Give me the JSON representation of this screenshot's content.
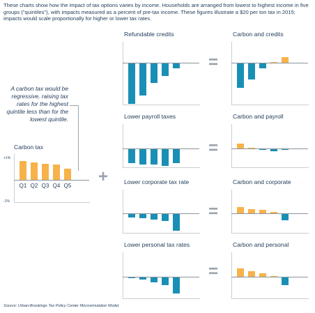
{
  "intro": "These charts show how the impact of tax options varies by income. Households are arranged from lowest to highest income in five groups (\"quintiles\"), with impacts measured as a percent of pre-tax income. These figures illustrate a $20 per ton tax in 2015; impacts would scale proportionally for higher or lower tax rates.",
  "note": "A carbon tax would be regressive, raising tax rates for the highest quintile less than for the lowest quintile.",
  "source": "Source: Urban-Brookings Tax Policy Center Microsimulation Model.",
  "operators": {
    "plus": "+",
    "equals": "="
  },
  "colors": {
    "carbon": "#f7b24a",
    "offset": "#1a8fb5"
  },
  "chart_data": [
    {
      "id": "carbon",
      "type": "bar",
      "title": "Carbon tax",
      "categories": [
        "Q1",
        "Q2",
        "Q3",
        "Q4",
        "Q5"
      ],
      "values": [
        0.85,
        0.78,
        0.73,
        0.68,
        0.5
      ],
      "yticks": [
        "+1%",
        "-1%"
      ],
      "ylim": [
        -1,
        1
      ],
      "color": "#f7b24a"
    },
    {
      "id": "refundable",
      "type": "bar",
      "title": "Refundable credits",
      "categories": [
        "Q1",
        "Q2",
        "Q3",
        "Q4",
        "Q5"
      ],
      "values": [
        -2.5,
        -2.0,
        -1.2,
        -0.8,
        -0.3
      ],
      "ylim": [
        -3,
        1
      ],
      "color": "#1a8fb5"
    },
    {
      "id": "carbon-credits",
      "type": "bar",
      "title": "Carbon and credits",
      "categories": [
        "Q1",
        "Q2",
        "Q3",
        "Q4",
        "Q5"
      ],
      "values": [
        -1.5,
        -1.0,
        -0.3,
        0.05,
        0.35
      ],
      "ylim": [
        -3,
        1
      ],
      "color": "mixed"
    },
    {
      "id": "payroll",
      "type": "bar",
      "title": "Lower payroll taxes",
      "categories": [
        "Q1",
        "Q2",
        "Q3",
        "Q4",
        "Q5"
      ],
      "values": [
        -0.9,
        -1.0,
        -1.0,
        -1.1,
        -0.9
      ],
      "ylim": [
        -2,
        1
      ],
      "color": "#1a8fb5"
    },
    {
      "id": "carbon-payroll",
      "type": "bar",
      "title": "Carbon and payroll",
      "categories": [
        "Q1",
        "Q2",
        "Q3",
        "Q4",
        "Q5"
      ],
      "values": [
        0.3,
        0.05,
        -0.05,
        -0.15,
        -0.05
      ],
      "ylim": [
        -2,
        1
      ],
      "color": "mixed"
    },
    {
      "id": "corporate",
      "type": "bar",
      "title": "Lower corporate tax rate",
      "categories": [
        "Q1",
        "Q2",
        "Q3",
        "Q4",
        "Q5"
      ],
      "values": [
        -0.3,
        -0.4,
        -0.5,
        -0.6,
        -1.5
      ],
      "ylim": [
        -2,
        1
      ],
      "color": "#1a8fb5"
    },
    {
      "id": "carbon-corporate",
      "type": "bar",
      "title": "Carbon and corporate",
      "categories": [
        "Q1",
        "Q2",
        "Q3",
        "Q4",
        "Q5"
      ],
      "values": [
        0.55,
        0.4,
        0.3,
        0.15,
        -0.55
      ],
      "ylim": [
        -2,
        1
      ],
      "color": "mixed"
    },
    {
      "id": "personal",
      "type": "bar",
      "title": "Lower personal tax rates",
      "categories": [
        "Q1",
        "Q2",
        "Q3",
        "Q4",
        "Q5"
      ],
      "values": [
        -0.05,
        -0.2,
        -0.45,
        -0.75,
        -1.5
      ],
      "ylim": [
        -2,
        1
      ],
      "color": "#1a8fb5"
    },
    {
      "id": "carbon-personal",
      "type": "bar",
      "title": "Carbon and personal",
      "categories": [
        "Q1",
        "Q2",
        "Q3",
        "Q4",
        "Q5"
      ],
      "values": [
        0.8,
        0.55,
        0.35,
        0.1,
        -0.7
      ],
      "ylim": [
        -2,
        1
      ],
      "color": "mixed"
    }
  ]
}
